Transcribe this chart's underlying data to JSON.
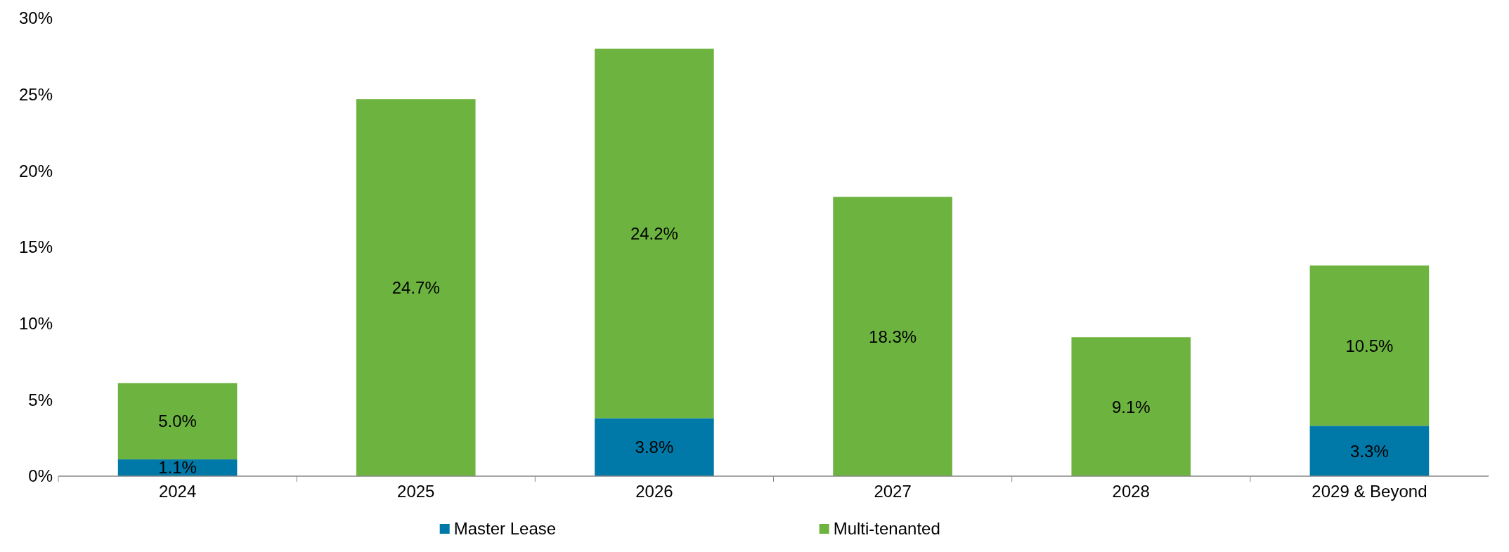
{
  "chart_data": {
    "type": "bar",
    "stacked": true,
    "categories": [
      "2024",
      "2025",
      "2026",
      "2027",
      "2028",
      "2029 & Beyond"
    ],
    "series": [
      {
        "name": "Master Lease",
        "color": "#0079a8",
        "values": [
          1.1,
          null,
          3.8,
          null,
          null,
          3.3
        ],
        "value_labels": [
          "1.1%",
          null,
          "3.8%",
          null,
          null,
          "3.3%"
        ]
      },
      {
        "name": "Multi-tenanted",
        "color": "#6db33f",
        "values": [
          5.0,
          24.7,
          24.2,
          18.3,
          9.1,
          10.5
        ],
        "value_labels": [
          "5.0%",
          "24.7%",
          "24.2%",
          "18.3%",
          "9.1%",
          "10.5%"
        ]
      }
    ],
    "ylim": [
      0,
      30
    ],
    "yticks": [
      {
        "value": 0,
        "label": "0%"
      },
      {
        "value": 5,
        "label": "5%"
      },
      {
        "value": 10,
        "label": "10%"
      },
      {
        "value": 15,
        "label": "15%"
      },
      {
        "value": 20,
        "label": "20%"
      },
      {
        "value": 25,
        "label": "25%"
      },
      {
        "value": 30,
        "label": "30%"
      }
    ],
    "legend": "bottom",
    "grid": false
  }
}
